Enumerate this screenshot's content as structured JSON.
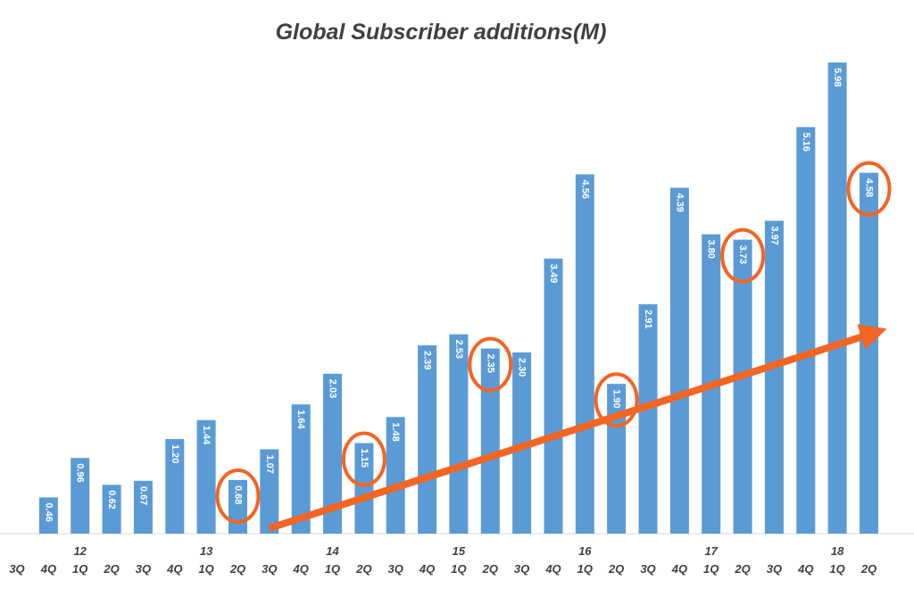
{
  "chart_data": {
    "type": "bar",
    "title": "Global Subscriber additions(M)",
    "xlabel": "",
    "ylabel": "",
    "ylim": [
      0,
      6.2
    ],
    "grid": false,
    "legend": "none",
    "bar_color": "#5b9bd5",
    "annotation_color": "#f26522",
    "categories": [
      {
        "q": "3Q",
        "year": ""
      },
      {
        "q": "4Q",
        "year": ""
      },
      {
        "q": "1Q",
        "year": "12"
      },
      {
        "q": "2Q",
        "year": ""
      },
      {
        "q": "3Q",
        "year": ""
      },
      {
        "q": "4Q",
        "year": ""
      },
      {
        "q": "1Q",
        "year": "13"
      },
      {
        "q": "2Q",
        "year": ""
      },
      {
        "q": "3Q",
        "year": ""
      },
      {
        "q": "4Q",
        "year": ""
      },
      {
        "q": "1Q",
        "year": "14"
      },
      {
        "q": "2Q",
        "year": ""
      },
      {
        "q": "3Q",
        "year": ""
      },
      {
        "q": "4Q",
        "year": ""
      },
      {
        "q": "1Q",
        "year": "15"
      },
      {
        "q": "2Q",
        "year": ""
      },
      {
        "q": "3Q",
        "year": ""
      },
      {
        "q": "4Q",
        "year": ""
      },
      {
        "q": "1Q",
        "year": "16"
      },
      {
        "q": "2Q",
        "year": ""
      },
      {
        "q": "3Q",
        "year": ""
      },
      {
        "q": "4Q",
        "year": ""
      },
      {
        "q": "1Q",
        "year": "17"
      },
      {
        "q": "2Q",
        "year": ""
      },
      {
        "q": "3Q",
        "year": ""
      },
      {
        "q": "4Q",
        "year": ""
      },
      {
        "q": "1Q",
        "year": "18"
      },
      {
        "q": "2Q",
        "year": ""
      }
    ],
    "values": [
      null,
      0.46,
      0.96,
      0.62,
      0.67,
      1.2,
      1.44,
      0.68,
      1.07,
      1.64,
      2.03,
      1.15,
      1.48,
      2.39,
      2.53,
      2.35,
      2.3,
      3.49,
      4.56,
      1.9,
      2.91,
      4.39,
      3.8,
      3.73,
      3.97,
      5.16,
      5.98,
      4.58
    ],
    "labels": [
      "",
      "0.46",
      "0.96",
      "0.62",
      "0.67",
      "1.20",
      "1.44",
      "0.68",
      "1.07",
      "1.64",
      "2.03",
      "1.15",
      "1.48",
      "2.39",
      "2.53",
      "2.35",
      "2.30",
      "3.49",
      "4.56",
      "1.90",
      "2.91",
      "4.39",
      "3.80",
      "3.73",
      "3.97",
      "5.16",
      "5.98",
      "4.58"
    ],
    "annotations": {
      "circled_bars": [
        7,
        11,
        15,
        19,
        23,
        27
      ],
      "trend_arrow": {
        "from_category": 8,
        "from_value": 0,
        "to_category": 27,
        "to_value": 2.6
      }
    }
  }
}
